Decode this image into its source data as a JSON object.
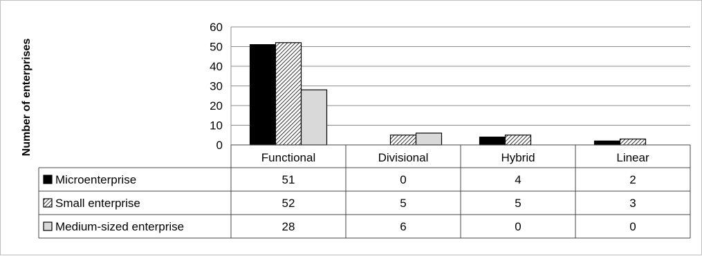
{
  "chart_data": {
    "type": "bar",
    "title": "",
    "xlabel": "",
    "ylabel": "Number of enterprises",
    "categories": [
      "Functional",
      "Divisional",
      "Hybrid",
      "Linear"
    ],
    "ylim": [
      0,
      60
    ],
    "yticks": [
      0,
      10,
      20,
      30,
      40,
      50,
      60
    ],
    "grid": true,
    "legend": "table-left",
    "series": [
      {
        "name": "Microenterprise",
        "values": [
          51,
          0,
          4,
          2
        ],
        "fill": "#000000",
        "pattern": "solid"
      },
      {
        "name": "Small enterprise",
        "values": [
          52,
          5,
          5,
          3
        ],
        "fill": "#ffffff",
        "pattern": "diagonal-hatch"
      },
      {
        "name": "Medium-sized enterprise",
        "values": [
          28,
          6,
          0,
          0
        ],
        "fill": "#d9d9d9",
        "pattern": "solid"
      }
    ]
  }
}
